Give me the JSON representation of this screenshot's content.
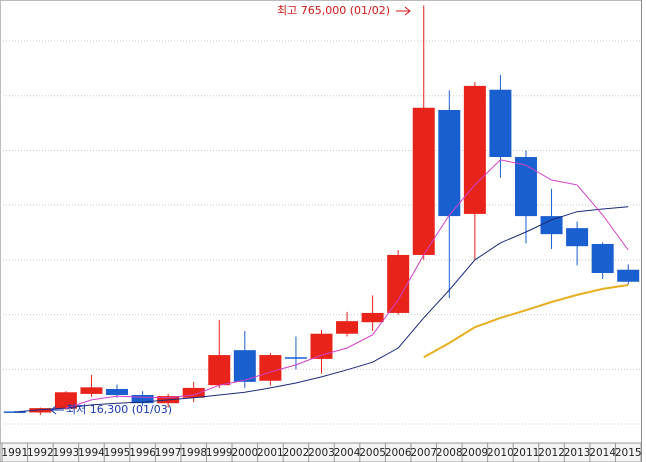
{
  "chart_data": {
    "type": "candlestick",
    "categories": [
      "1991",
      "1992",
      "1993",
      "1994",
      "1995",
      "1996",
      "1997",
      "1998",
      "1999",
      "2000",
      "2001",
      "2002",
      "2003",
      "2004",
      "2005",
      "2006",
      "2007",
      "2008",
      "2009",
      "2010",
      "2011",
      "2012",
      "2013",
      "2014",
      "2015"
    ],
    "open": [
      23000,
      21000,
      28000,
      55000,
      64000,
      53000,
      38000,
      48000,
      71000,
      135000,
      79000,
      122000,
      119000,
      165000,
      186000,
      203000,
      309000,
      574000,
      384000,
      611000,
      488000,
      380000,
      358000,
      329000,
      282000
    ],
    "high": [
      24000,
      30000,
      60000,
      90000,
      72000,
      60000,
      55000,
      77000,
      190000,
      170000,
      130000,
      160000,
      172000,
      205000,
      235000,
      318000,
      765000,
      610000,
      625000,
      638000,
      500000,
      430000,
      370000,
      332000,
      292000
    ],
    "low": [
      21000,
      16300,
      26000,
      50000,
      48000,
      33000,
      30000,
      40000,
      66000,
      66000,
      70000,
      100000,
      92000,
      160000,
      170000,
      200000,
      300000,
      230000,
      300000,
      450000,
      330000,
      320000,
      290000,
      265000,
      255000
    ],
    "close": [
      22000,
      29000,
      58000,
      67000,
      53000,
      38000,
      51000,
      66000,
      126000,
      77000,
      126000,
      120000,
      165000,
      188000,
      203000,
      309000,
      578000,
      380000,
      618000,
      488000,
      380000,
      347000,
      325000,
      276000,
      260000
    ],
    "up_color": "#e8231a",
    "down_color": "#1a5fd0",
    "series": [
      {
        "color": "#1a2a7a",
        "values": [
          22000,
          26000,
          29000,
          35000,
          38000,
          40000,
          44000,
          48000,
          53000,
          58000,
          66000,
          75000,
          86000,
          99000,
          113000,
          139000,
          194000,
          245000,
          300000,
          331000,
          351000,
          373000,
          388000,
          393000,
          397000
        ]
      },
      {
        "color": "#d040c8",
        "values": [
          null,
          null,
          29000,
          44000,
          51000,
          49000,
          48000,
          53000,
          71000,
          80000,
          95000,
          108000,
          126000,
          139000,
          163000,
          227000,
          309000,
          382000,
          437000,
          483000,
          473000,
          446000,
          437000,
          382000,
          318000
        ]
      },
      {
        "color": "#e8b020",
        "values": [
          null,
          null,
          null,
          null,
          null,
          null,
          null,
          null,
          null,
          null,
          null,
          null,
          null,
          null,
          null,
          null,
          122000,
          148000,
          177000,
          194000,
          208000,
          223000,
          236000,
          247000,
          254000
        ]
      }
    ],
    "ylim": [
      0,
      775000
    ],
    "yticks": [
      0,
      100000,
      200000,
      300000,
      400000,
      500000,
      600000,
      700000
    ],
    "grid": true,
    "annotations": [
      "최고 765,000 (01/02)",
      "최저 16,300 (01/03)"
    ]
  }
}
